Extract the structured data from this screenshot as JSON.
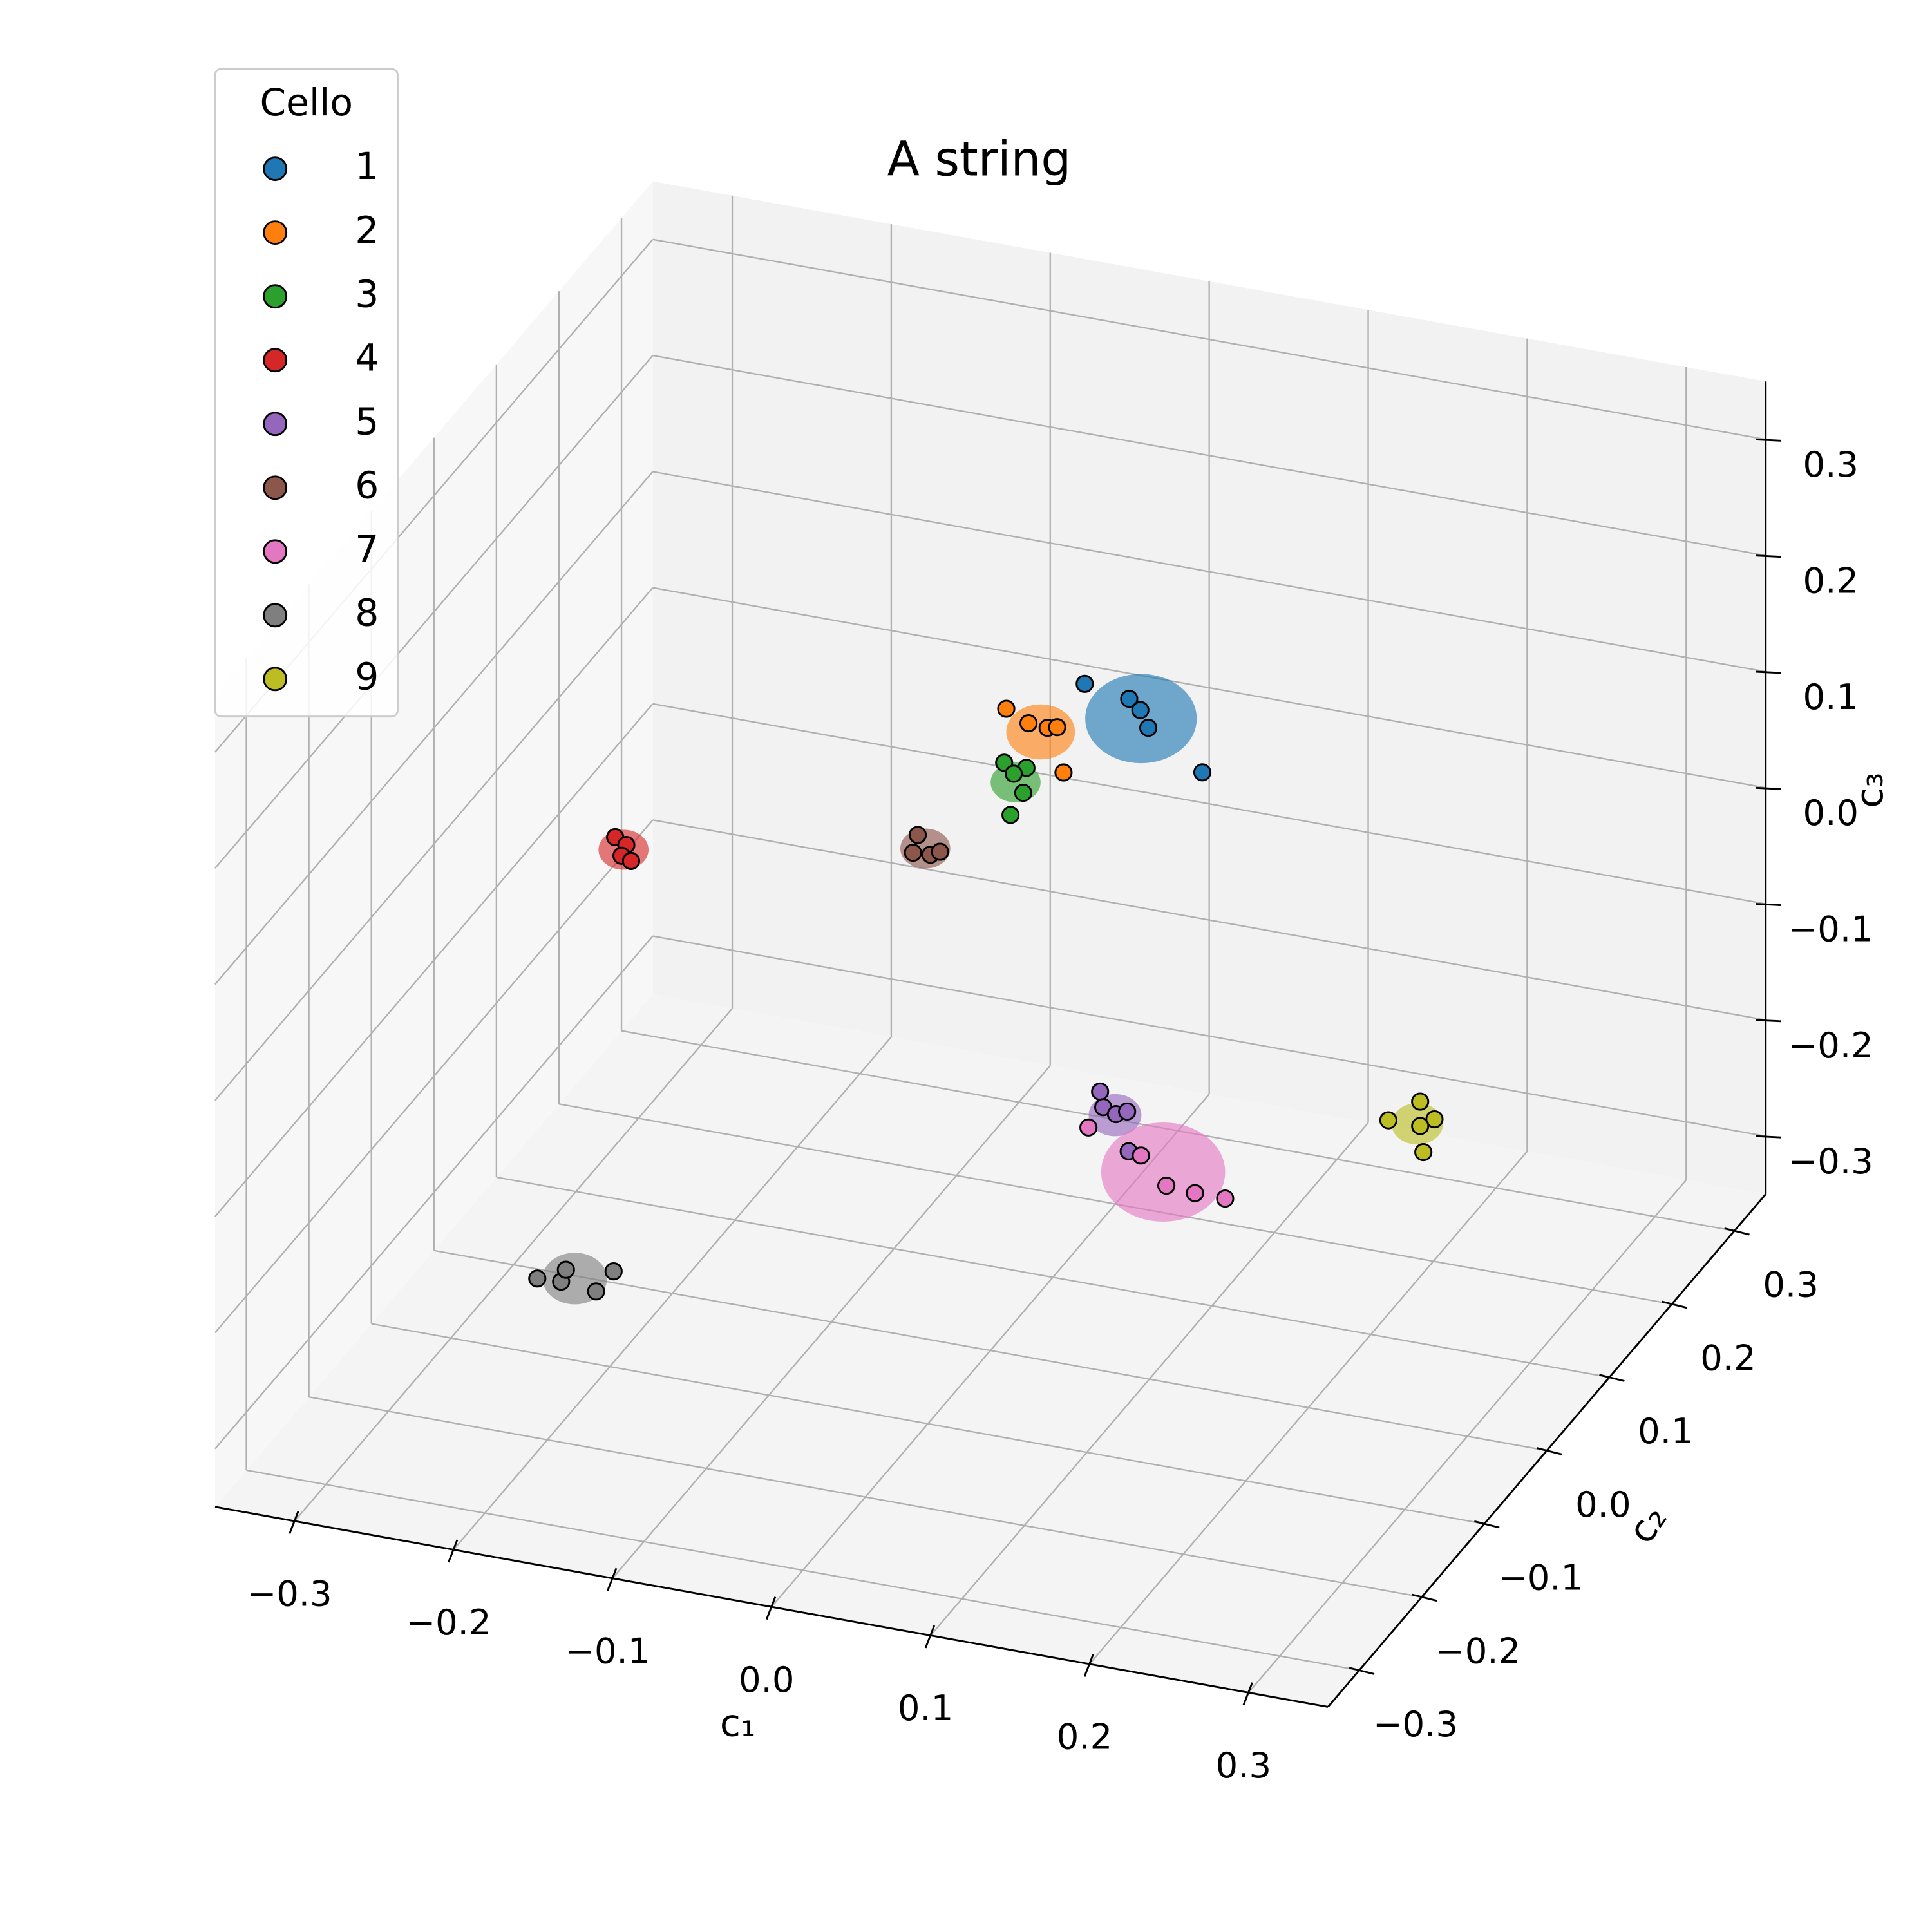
{
  "chart_data": {
    "type": "scatter3d",
    "title": "A string",
    "legend_title": "Cello",
    "legend_loc": "upper left",
    "xlabel": "c₁",
    "ylabel": "c₂",
    "zlabel": "c₃",
    "grid": true,
    "xlim": [
      -0.35,
      0.35
    ],
    "ylim": [
      -0.35,
      0.35
    ],
    "zlim": [
      -0.35,
      0.35
    ],
    "xticks": [
      {
        "value": -0.3,
        "label": "−0.3"
      },
      {
        "value": -0.2,
        "label": "−0.2"
      },
      {
        "value": -0.1,
        "label": "−0.1"
      },
      {
        "value": 0,
        "label": "0.0"
      },
      0.1,
      0.2,
      0.3
    ],
    "yticks": [
      {
        "value": -0.3,
        "label": "−0.3"
      },
      {
        "value": -0.2,
        "label": "−0.2"
      },
      {
        "value": -0.1,
        "label": "−0.1"
      },
      {
        "value": 0,
        "label": "0.0"
      },
      0.1,
      0.2,
      0.3
    ],
    "zticks": [
      {
        "value": -0.3,
        "label": "−0.3"
      },
      {
        "value": -0.2,
        "label": "−0.2"
      },
      {
        "value": -0.1,
        "label": "−0.1"
      },
      {
        "value": 0,
        "label": "0.0"
      },
      0.1,
      0.2,
      0.3
    ],
    "series": [
      {
        "name": "1",
        "color": "#1f77b4",
        "x": [
          0.02,
          0.048,
          0.055,
          0.06,
          0.094
        ],
        "y": [
          0.1,
          0.1,
          0.1,
          0.1,
          0.1
        ],
        "z": [
          0.166,
          0.16,
          0.152,
          0.138,
          0.108
        ]
      },
      {
        "name": "2",
        "color": "#ff7f0e",
        "x": [
          -0.049,
          -0.035,
          -0.023,
          -0.017,
          -0.013
        ],
        "y": [
          0.15,
          0.15,
          0.15,
          0.15,
          0.15
        ],
        "z": [
          0.096,
          0.087,
          0.086,
          0.088,
          0.05
        ]
      },
      {
        "name": "3",
        "color": "#2ca02c",
        "x": [
          -0.011,
          0.003,
          -0.005,
          0.001,
          -0.007
        ],
        "y": [
          0.05,
          0.05,
          0.05,
          0.05,
          0.05
        ],
        "z": [
          0.122,
          0.121,
          0.114,
          0.099,
          0.078
        ]
      },
      {
        "name": "4",
        "color": "#d62728",
        "x": [
          -0.236,
          -0.229,
          -0.232,
          -0.226
        ],
        "y": [
          0.0,
          0.0,
          0.0,
          0.0
        ],
        "z": [
          0.034,
          0.029,
          0.019,
          0.016
        ]
      },
      {
        "name": "5",
        "color": "#9467bd",
        "x": [
          0.069,
          0.071,
          0.079,
          0.086,
          0.087
        ],
        "y": [
          0.0,
          0.0,
          0.0,
          0.0,
          0.0
        ],
        "z": [
          -0.11,
          -0.123,
          -0.127,
          -0.123,
          -0.157
        ]
      },
      {
        "name": "6",
        "color": "#8c564b",
        "x": [
          -0.085,
          -0.088,
          -0.077,
          -0.071
        ],
        "y": [
          0.1,
          0.1,
          0.1,
          0.1
        ],
        "z": [
          0.01,
          -0.006,
          -0.005,
          -0.001
        ]
      },
      {
        "name": "7",
        "color": "#e377c2",
        "x": [
          0.101,
          0.134,
          0.15,
          0.168,
          0.187
        ],
        "y": [
          -0.1,
          -0.1,
          -0.1,
          -0.1,
          -0.1
        ],
        "z": [
          -0.07,
          -0.086,
          -0.108,
          -0.11,
          -0.11
        ]
      },
      {
        "name": "8",
        "color": "#7f7f7f",
        "x": [
          -0.226,
          -0.211,
          -0.208,
          -0.189,
          -0.178
        ],
        "y": [
          -0.15,
          -0.15,
          -0.15,
          -0.15,
          -0.15
        ],
        "z": [
          -0.249,
          -0.248,
          -0.237,
          -0.251,
          -0.231
        ]
      },
      {
        "name": "9",
        "color": "#bcbd22",
        "x": [
          0.152,
          0.172,
          0.181,
          0.172,
          0.174
        ],
        "y": [
          0.25,
          0.25,
          0.25,
          0.25,
          0.25
        ],
        "z": [
          -0.272,
          -0.251,
          -0.264,
          -0.272,
          -0.294
        ]
      }
    ]
  }
}
